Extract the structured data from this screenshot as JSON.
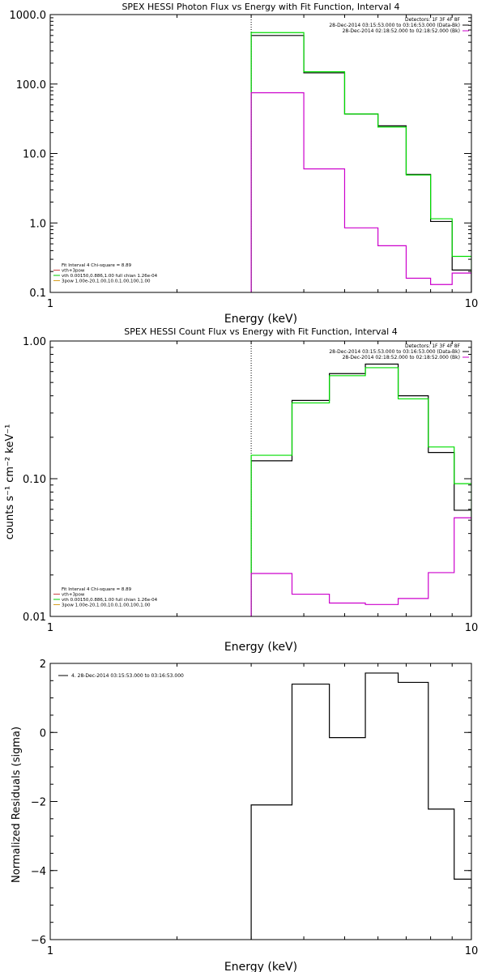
{
  "colors": {
    "data": "#000000",
    "total": "#00dd00",
    "vth": "#00cc00",
    "bk": "#cc00cc",
    "pileup": "#cc4444",
    "thick": "#d8a020",
    "frame": "#000000",
    "background": "#ffffff"
  },
  "chart_data": [
    {
      "type": "line",
      "title": "SPEX HESSI Photon Flux vs Energy with Fit Function, Interval 4",
      "xlabel": "Energy (keV)",
      "ylabel": "",
      "xscale": "log",
      "yscale": "log",
      "xlim": [
        1,
        10
      ],
      "ylim": [
        0.1,
        1000
      ],
      "xticks": [
        {
          "value": 1,
          "label": "1"
        },
        {
          "value": 10,
          "label": "10"
        }
      ],
      "yticks": [
        {
          "value": 0.1,
          "label": "0.1"
        },
        {
          "value": 1,
          "label": "1.0"
        },
        {
          "value": 10,
          "label": "10.0"
        },
        {
          "value": 100,
          "label": "100.0"
        },
        {
          "value": 1000,
          "label": "1000.0"
        }
      ],
      "vline": 3.0,
      "legend_top": [
        {
          "text": "Detectors: 1F 3F 4F 8F",
          "color": "#000000"
        },
        {
          "text": "28-Dec-2014 03:15:53.000 to 03:16:53.000 (Data-Bk)",
          "color": "#000000"
        },
        {
          "text": "28-Dec-2014 02:18:52.000 to 02:18:52.000 (Bk)",
          "color": "#cc00cc"
        }
      ],
      "legend_bottom": [
        {
          "text": "Fit Interval 4   Chi-square = 8.89",
          "color": "#000000"
        },
        {
          "text": "vth+3pow",
          "color": "#cc4444"
        },
        {
          "text": "vth 0.00150,0.886,1.00  full chian 1.26e-04",
          "color": "#00cc00"
        },
        {
          "text": "3pow 1.00e-20,1.00,10.0,1.00,100,1.00",
          "color": "#d8a020"
        }
      ],
      "edges": [
        3.0,
        4.0,
        5.0,
        6.0,
        7.0,
        8.0,
        9.0,
        10.0
      ],
      "series": [
        {
          "color": "#000000",
          "values": [
            500,
            145,
            37,
            25,
            5.0,
            1.05,
            0.21
          ]
        },
        {
          "color": "#00dd00",
          "values": [
            550,
            150,
            37,
            24,
            4.9,
            1.15,
            0.33
          ]
        },
        {
          "color": "#cc00cc",
          "values": [
            75,
            6.0,
            0.85,
            0.47,
            0.16,
            0.13,
            0.19
          ]
        }
      ]
    },
    {
      "type": "line",
      "title": "SPEX HESSI Count Flux vs Energy with Fit Function, Interval 4",
      "xlabel": "Energy (keV)",
      "ylabel": "counts s⁻¹ cm⁻² keV⁻¹",
      "xscale": "log",
      "yscale": "log",
      "xlim": [
        1,
        10
      ],
      "ylim": [
        0.01,
        1.0
      ],
      "xticks": [
        {
          "value": 1,
          "label": "1"
        },
        {
          "value": 10,
          "label": "10"
        }
      ],
      "yticks": [
        {
          "value": 0.01,
          "label": "0.01"
        },
        {
          "value": 0.1,
          "label": "0.10"
        },
        {
          "value": 1,
          "label": "1.00"
        }
      ],
      "vline": 3.0,
      "legend_top": [
        {
          "text": "Detectors: 1F 3F 4F 8F",
          "color": "#000000"
        },
        {
          "text": "28-Dec-2014 03:15:53.000 to 03:16:53.000 (Data-Bk)",
          "color": "#000000"
        },
        {
          "text": "28-Dec-2014 02:18:52.000 to 02:18:52.000 (Bk)",
          "color": "#cc00cc"
        }
      ],
      "legend_bottom": [
        {
          "text": "Fit Interval 4   Chi-square = 8.89",
          "color": "#000000"
        },
        {
          "text": "vth+3pow",
          "color": "#cc4444"
        },
        {
          "text": "vth 0.00150,0.886,1.00  full chian 1.26e-04",
          "color": "#00cc00"
        },
        {
          "text": "3pow 1.00e-20,1.00,10.0,1.00,100,1.00",
          "color": "#d8a020"
        }
      ],
      "edges": [
        3.0,
        3.75,
        4.6,
        5.6,
        6.7,
        7.9,
        9.1,
        10.0
      ],
      "series": [
        {
          "color": "#000000",
          "values": [
            0.135,
            0.37,
            0.58,
            0.68,
            0.4,
            0.155,
            0.059
          ]
        },
        {
          "color": "#00dd00",
          "values": [
            0.148,
            0.355,
            0.56,
            0.64,
            0.38,
            0.17,
            0.092
          ]
        },
        {
          "color": "#cc00cc",
          "values": [
            0.0205,
            0.0145,
            0.0125,
            0.0122,
            0.0135,
            0.0208,
            0.052
          ]
        }
      ]
    },
    {
      "type": "line",
      "title": "",
      "xlabel": "Energy (keV)",
      "ylabel": "Normalized Residuals (sigma)",
      "xscale": "log",
      "yscale": "linear",
      "xlim": [
        1,
        10
      ],
      "ylim": [
        -6,
        2
      ],
      "xticks": [
        {
          "value": 1,
          "label": "1"
        },
        {
          "value": 10,
          "label": "10"
        }
      ],
      "yticks": [
        {
          "value": -6,
          "label": "−6"
        },
        {
          "value": -4,
          "label": "−4"
        },
        {
          "value": -2,
          "label": "−2"
        },
        {
          "value": 0,
          "label": "0"
        },
        {
          "value": 2,
          "label": "2"
        }
      ],
      "legend_top": [
        {
          "text": "4. 28-Dec-2014 03:15:53.000 to 03:16:53.000",
          "color": "#000000"
        }
      ],
      "legend_bottom": [],
      "edges": [
        3.0,
        3.75,
        4.6,
        5.6,
        6.7,
        7.9,
        9.1,
        10.0
      ],
      "series": [
        {
          "color": "#000000",
          "values": [
            -2.1,
            1.4,
            -0.15,
            1.72,
            1.45,
            -2.22,
            -4.25
          ]
        }
      ]
    }
  ]
}
